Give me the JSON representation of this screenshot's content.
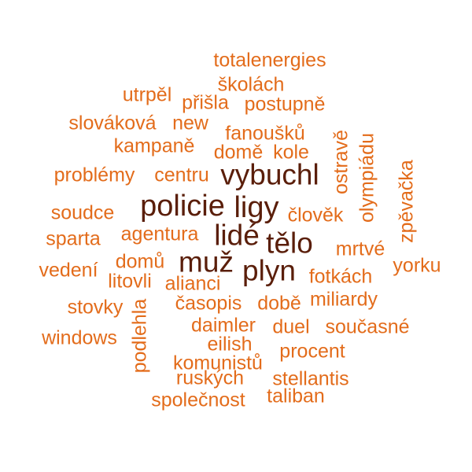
{
  "colors": {
    "dark": "#5a1e0a",
    "light": "#e36c1b"
  },
  "words": [
    {
      "text": "vybuchl",
      "weight": "dark"
    },
    {
      "text": "policie",
      "weight": "dark"
    },
    {
      "text": "ligy",
      "weight": "dark"
    },
    {
      "text": "lidé",
      "weight": "dark"
    },
    {
      "text": "tělo",
      "weight": "dark"
    },
    {
      "text": "muž",
      "weight": "dark"
    },
    {
      "text": "plyn",
      "weight": "dark"
    },
    {
      "text": "totalenergies",
      "weight": "light"
    },
    {
      "text": "školách",
      "weight": "light"
    },
    {
      "text": "utrpěl",
      "weight": "light"
    },
    {
      "text": "přišla",
      "weight": "light"
    },
    {
      "text": "postupně",
      "weight": "light"
    },
    {
      "text": "slováková",
      "weight": "light"
    },
    {
      "text": "new",
      "weight": "light"
    },
    {
      "text": "fanoušků",
      "weight": "light"
    },
    {
      "text": "kampaně",
      "weight": "light"
    },
    {
      "text": "domě",
      "weight": "light"
    },
    {
      "text": "kole",
      "weight": "light"
    },
    {
      "text": "problémy",
      "weight": "light"
    },
    {
      "text": "centru",
      "weight": "light"
    },
    {
      "text": "ostravě",
      "weight": "light"
    },
    {
      "text": "olympiádu",
      "weight": "light"
    },
    {
      "text": "zpěvačka",
      "weight": "light"
    },
    {
      "text": "soudce",
      "weight": "light"
    },
    {
      "text": "člověk",
      "weight": "light"
    },
    {
      "text": "sparta",
      "weight": "light"
    },
    {
      "text": "agentura",
      "weight": "light"
    },
    {
      "text": "mrtvé",
      "weight": "light"
    },
    {
      "text": "domů",
      "weight": "light"
    },
    {
      "text": "vedení",
      "weight": "light"
    },
    {
      "text": "yorku",
      "weight": "light"
    },
    {
      "text": "litovli",
      "weight": "light"
    },
    {
      "text": "alianci",
      "weight": "light"
    },
    {
      "text": "fotkách",
      "weight": "light"
    },
    {
      "text": "podlehla",
      "weight": "light"
    },
    {
      "text": "stovky",
      "weight": "light"
    },
    {
      "text": "časopis",
      "weight": "light"
    },
    {
      "text": "době",
      "weight": "light"
    },
    {
      "text": "miliardy",
      "weight": "light"
    },
    {
      "text": "daimler",
      "weight": "light"
    },
    {
      "text": "duel",
      "weight": "light"
    },
    {
      "text": "současné",
      "weight": "light"
    },
    {
      "text": "windows",
      "weight": "light"
    },
    {
      "text": "eilish",
      "weight": "light"
    },
    {
      "text": "procent",
      "weight": "light"
    },
    {
      "text": "komunistů",
      "weight": "light"
    },
    {
      "text": "ruských",
      "weight": "light"
    },
    {
      "text": "stellantis",
      "weight": "light"
    },
    {
      "text": "společnost",
      "weight": "light"
    },
    {
      "text": "taliban",
      "weight": "light"
    }
  ]
}
